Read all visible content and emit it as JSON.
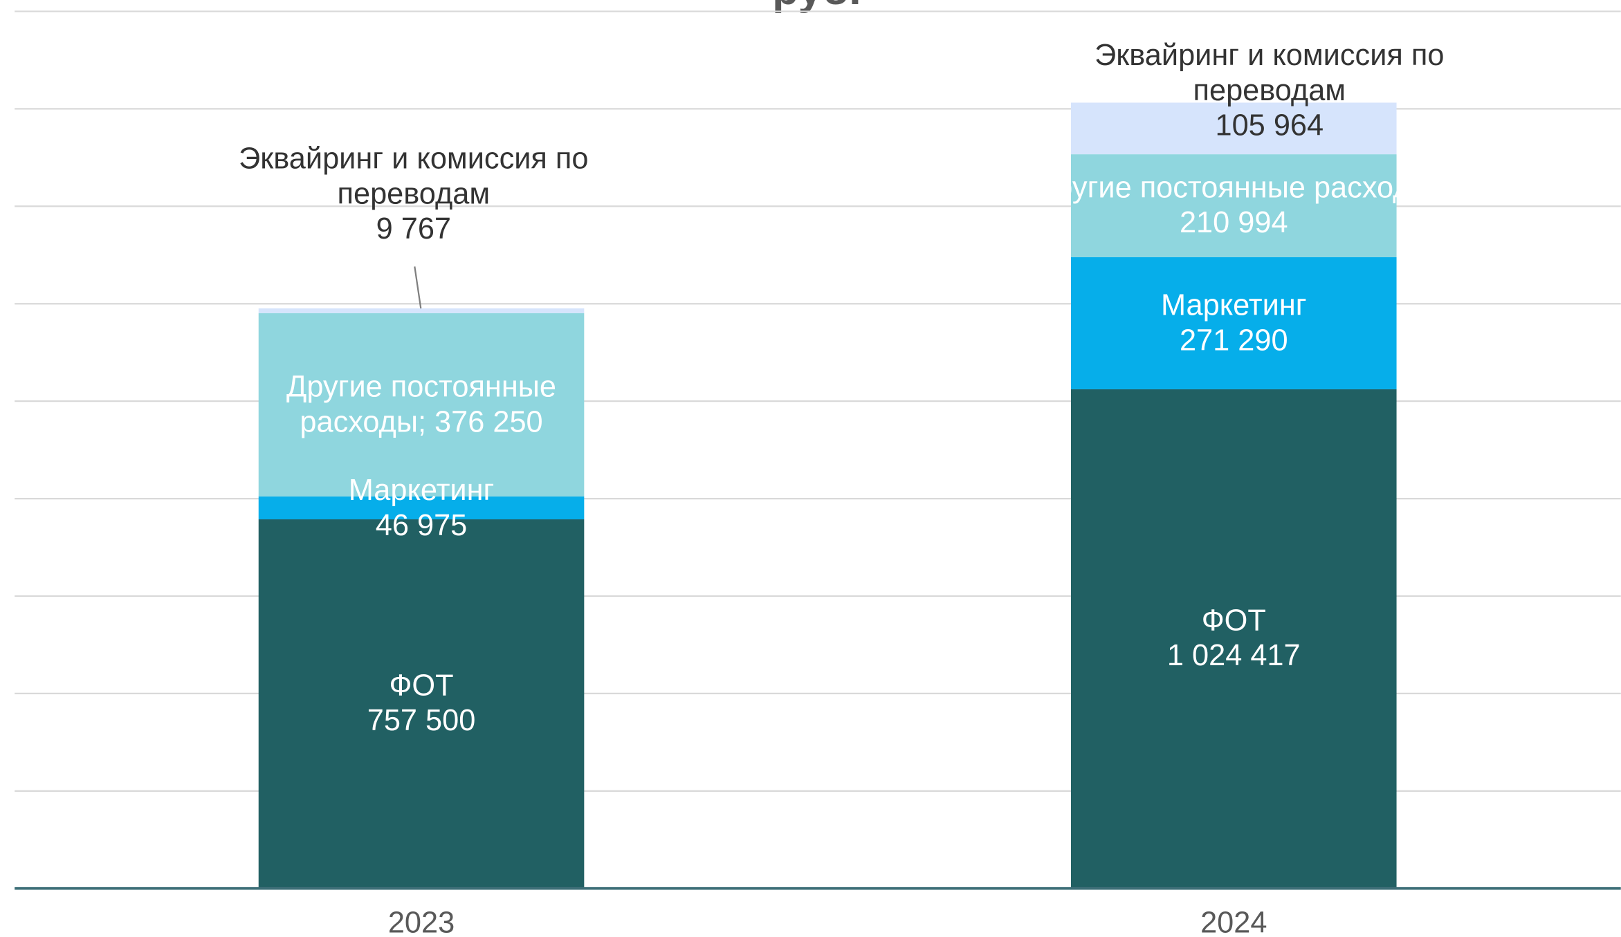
{
  "chart_data": {
    "type": "stacked_bar",
    "title": "руб.",
    "categories": [
      "2023",
      "2024"
    ],
    "series": [
      {
        "name": "ФОТ",
        "color": "#216063",
        "values": [
          757500,
          1024417
        ],
        "value_labels": [
          "757 500",
          "1 024 417"
        ]
      },
      {
        "name": "Маркетинг",
        "color": "#06aeea",
        "values": [
          46975,
          271290
        ],
        "value_labels": [
          "46 975",
          "271 290"
        ]
      },
      {
        "name": "Другие постоянные расходы",
        "color": "#8fd6de",
        "values": [
          376250,
          210994
        ],
        "value_labels": [
          "Другие постоянные расходы; 376 250",
          "210 994"
        ]
      },
      {
        "name": "Эквайринг и комиссия по переводам",
        "color": "#d6e4fc",
        "values": [
          9767,
          105964
        ],
        "value_labels": [
          "9 767",
          "105 964"
        ]
      }
    ],
    "ylim": [
      0,
      1800000
    ],
    "yticks": [
      0,
      200000,
      400000,
      600000,
      800000,
      1000000,
      1200000,
      1400000,
      1600000,
      1800000
    ],
    "grid": true
  }
}
